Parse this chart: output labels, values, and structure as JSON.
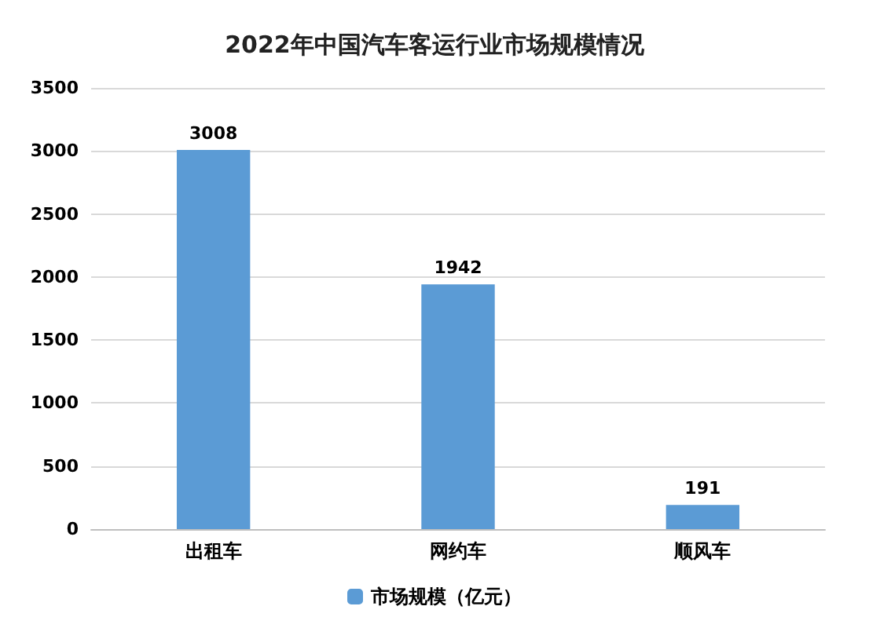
{
  "chart_data": {
    "type": "bar",
    "title": "2022年中国汽车客运行业市场规模情况",
    "categories": [
      "出租车",
      "网约车",
      "顺风车"
    ],
    "series": [
      {
        "name": "市场规模（亿元）",
        "color": "#5b9bd5",
        "values": [
          3008,
          1942,
          191
        ]
      }
    ],
    "ylim": [
      0,
      3500
    ],
    "yticks": [
      0,
      500,
      1000,
      1500,
      2000,
      2500,
      3000,
      3500
    ],
    "grid": "y",
    "legend": "bottom",
    "data_labels": true
  }
}
